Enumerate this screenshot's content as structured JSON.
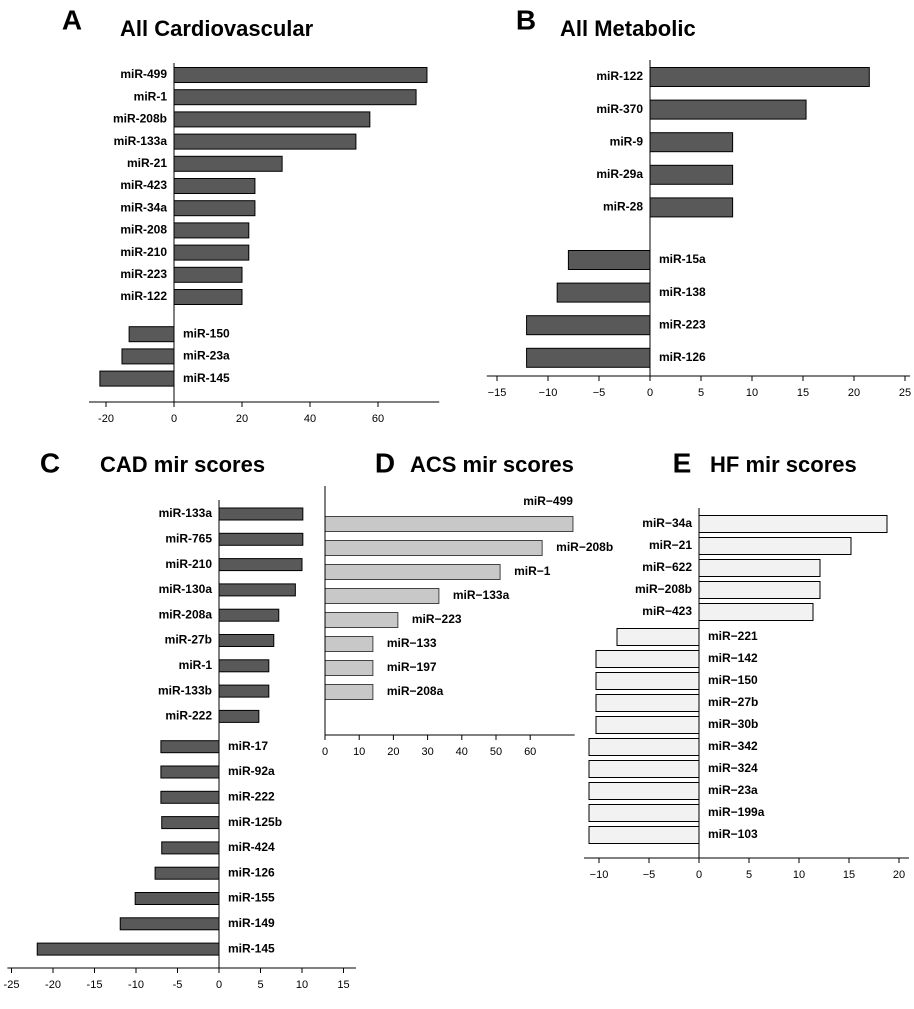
{
  "chart_data": [
    {
      "type": "barh",
      "panel_label": "A",
      "title": "All Cardiovascular",
      "color": "#595959",
      "categories": [
        "miR-499",
        "miR-1",
        "miR-208b",
        "miR-133a",
        "miR-21",
        "miR-423",
        "miR-34a",
        "miR-208",
        "miR-210",
        "miR-223",
        "miR-122",
        "miR-150",
        "miR-23a",
        "miR-145"
      ],
      "values": [
        74.4,
        71.2,
        57.6,
        53.5,
        31.8,
        23.8,
        23.8,
        22,
        22,
        20,
        20,
        -13.2,
        -15.3,
        -21.8
      ],
      "xlim": [
        -25,
        78
      ],
      "xticks": [
        -20,
        0,
        20,
        40,
        60
      ]
    },
    {
      "type": "barh",
      "panel_label": "B",
      "title": "All Metabolic",
      "color": "#595959",
      "categories": [
        "miR-122",
        "miR-370",
        "miR-9",
        "miR-29a",
        "miR-28",
        "miR-15a",
        "miR-138",
        "miR-223",
        "miR-126"
      ],
      "values": [
        21.5,
        15.3,
        8.1,
        8.1,
        8.1,
        -8,
        -9.1,
        -12.1,
        -12.1
      ],
      "xlim": [
        -16,
        25.5
      ],
      "xticks": [
        {
          "value": -15,
          "label": "−15"
        },
        {
          "value": -10,
          "label": "−10"
        },
        {
          "value": -5,
          "label": "−5"
        },
        0,
        5,
        10,
        15,
        20,
        25
      ]
    },
    {
      "type": "barh",
      "panel_label": "C",
      "title": "CAD mir scores",
      "color": "#595959",
      "categories": [
        "miR-133a",
        "miR-765",
        "miR-210",
        "miR-130a",
        "miR-208a",
        "miR-27b",
        "miR-1",
        "miR-133b",
        "miR-222",
        "miR-17",
        "miR-92a",
        "miR-222",
        "miR-125b",
        "miR-424",
        "miR-126",
        "miR-155",
        "miR-149",
        "miR-145"
      ],
      "values": [
        10.1,
        10.1,
        10,
        9.2,
        7.2,
        6.6,
        6,
        6,
        4.8,
        -7,
        -7,
        -7,
        -6.9,
        -6.9,
        -7.7,
        -10.1,
        -11.9,
        -21.9
      ],
      "xlim": [
        -25.5,
        16.5
      ],
      "xticks": [
        -25,
        -20,
        -15,
        -10,
        -5,
        0,
        5,
        10,
        15
      ]
    },
    {
      "type": "barh",
      "panel_label": "D",
      "title": "ACS mir scores",
      "color": "#c8c8c8",
      "categories": [
        "miR−499",
        "miR−208b",
        "miR−1",
        "miR−133a",
        "miR−223",
        "miR−133",
        "miR−197",
        "miR−208a"
      ],
      "values": [
        72.5,
        63.5,
        51.2,
        33.3,
        21.3,
        14,
        14,
        14
      ],
      "xlim": [
        0,
        73
      ],
      "xticks": [
        0,
        10,
        20,
        30,
        40,
        50,
        60
      ]
    },
    {
      "type": "barh",
      "panel_label": "E",
      "title": "HF mir scores",
      "color": "#f2f2f2",
      "categories": [
        "miR−34a",
        "miR−21",
        "miR−622",
        "miR−208b",
        "miR−423",
        "miR−221",
        "miR−142",
        "miR−150",
        "miR−27b",
        "miR−30b",
        "miR−342",
        "miR−324",
        "miR−23a",
        "miR−199a",
        "miR−103"
      ],
      "values": [
        18.8,
        15.2,
        12.1,
        12.1,
        11.4,
        -8.2,
        -10.3,
        -10.3,
        -10.3,
        -10.3,
        -11,
        -11,
        -11,
        -11,
        -11
      ],
      "xlim": [
        -11.5,
        21
      ],
      "xticks": [
        {
          "value": -10,
          "label": "−10"
        },
        {
          "value": -5,
          "label": "−5"
        },
        0,
        5,
        10,
        15,
        20
      ]
    }
  ]
}
